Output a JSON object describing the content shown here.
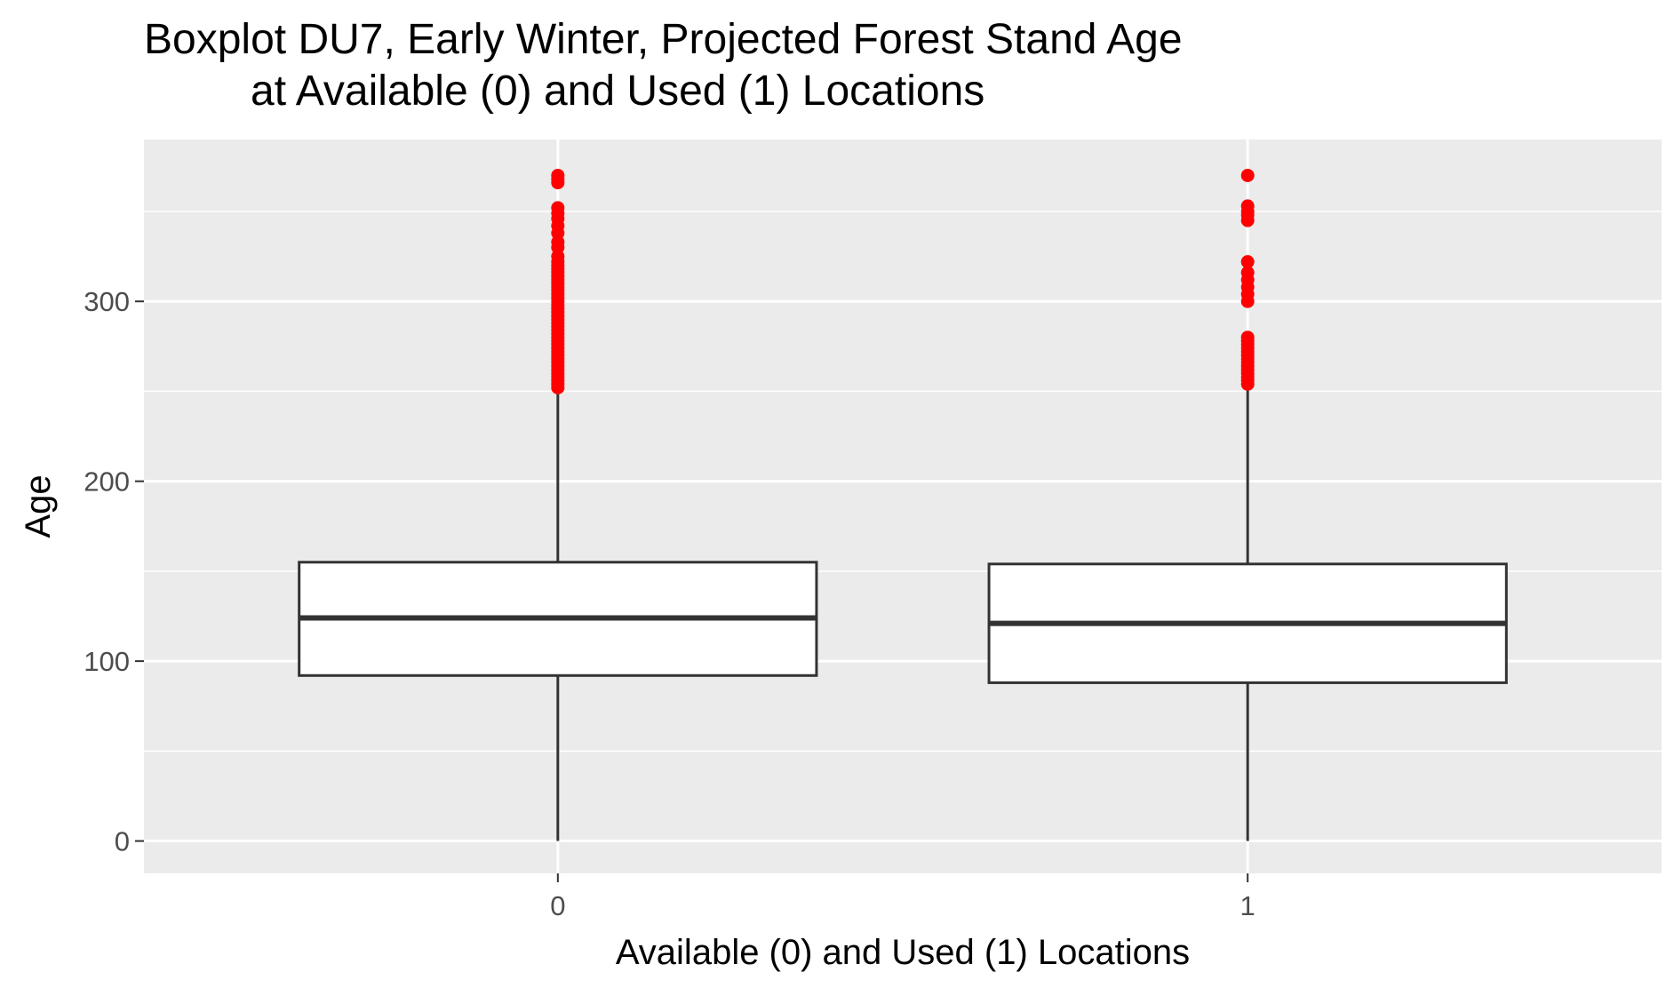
{
  "chart_data": {
    "type": "boxplot",
    "title_lines": [
      "Boxplot DU7, Early Winter, Projected Forest Stand Age",
      "at Available (0) and Used (1) Locations"
    ],
    "xlabel": "Available (0) and Used (1) Locations",
    "ylabel": "Age",
    "ylim": [
      -18,
      390
    ],
    "yticks": [
      0,
      100,
      200,
      300
    ],
    "grid": true,
    "panel_background": "#ebebeb",
    "grid_color": "#ffffff",
    "box_fill": "#ffffff",
    "box_stroke": "#333333",
    "outlier_color": "#ff0000",
    "categories": [
      "0",
      "1"
    ],
    "boxes": [
      {
        "category": "0",
        "whisker_low": 0,
        "q1": 92,
        "median": 124,
        "q3": 155,
        "whisker_high": 250,
        "outliers": [
          252,
          254,
          256,
          258,
          260,
          262,
          264,
          266,
          268,
          270,
          272,
          274,
          276,
          278,
          280,
          282,
          284,
          286,
          288,
          290,
          292,
          294,
          296,
          298,
          300,
          302,
          304,
          306,
          308,
          310,
          312,
          314,
          316,
          318,
          320,
          322,
          325,
          330,
          333,
          338,
          342,
          346,
          349,
          352,
          366,
          368,
          370
        ]
      },
      {
        "category": "1",
        "whisker_low": 0,
        "q1": 88,
        "median": 121,
        "q3": 154,
        "whisker_high": 252,
        "outliers": [
          254,
          256,
          258,
          260,
          262,
          264,
          266,
          268,
          270,
          272,
          274,
          276,
          278,
          280,
          300,
          304,
          308,
          312,
          316,
          322,
          345,
          348,
          350,
          353,
          370
        ]
      }
    ]
  }
}
